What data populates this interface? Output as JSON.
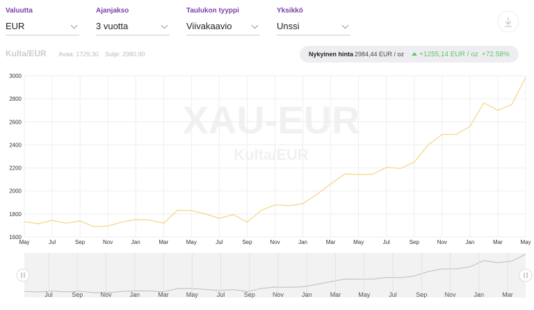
{
  "controls": [
    {
      "label": "Valuutta",
      "value": "EUR"
    },
    {
      "label": "Ajanjakso",
      "value": "3 vuotta"
    },
    {
      "label": "Taulukon tyyppi",
      "value": "Viivakaavio"
    },
    {
      "label": "Yksikkö",
      "value": "Unssi"
    }
  ],
  "info": {
    "name": "Kulta/EUR",
    "open": "Avaa: 1729,30",
    "close": "Sulje: 2980,90",
    "current_label": "Nykyinen hinta",
    "current_value": "2984,44 EUR / oz",
    "change": "+1255,14 EUR / oz",
    "change_pct": "+72.58%"
  },
  "watermark": {
    "title": "XAU-EUR",
    "subtitle": "Kulta/EUR"
  },
  "chart_data": {
    "type": "line",
    "categories": [
      "May",
      null,
      "Jul",
      null,
      "Sep",
      null,
      "Nov",
      null,
      "Jan",
      null,
      "Mar",
      null,
      "May",
      null,
      "Jul",
      null,
      "Sep",
      null,
      "Nov",
      null,
      "Jan",
      null,
      "Mar",
      null,
      "May",
      null,
      "Jul",
      null,
      "Sep",
      null,
      "Nov",
      null,
      "Jan",
      null,
      "Mar",
      null,
      "May"
    ],
    "series": [
      {
        "color": "#f5d78a",
        "values": [
          1733,
          1715,
          1745,
          1720,
          1739,
          1690,
          1695,
          1730,
          1752,
          1748,
          1720,
          1833,
          1830,
          1800,
          1762,
          1795,
          1730,
          1830,
          1880,
          1872,
          1890,
          1970,
          2060,
          2148,
          2143,
          2145,
          2205,
          2195,
          2250,
          2400,
          2490,
          2490,
          2560,
          2765,
          2700,
          2750,
          2985
        ]
      }
    ],
    "ylim": [
      1600,
      3000
    ],
    "yticks": [
      1600,
      1800,
      2000,
      2200,
      2400,
      2600,
      2800,
      3000
    ],
    "grid": true
  },
  "navigator": {
    "ticks": [
      "Jul",
      "Sep",
      "Nov",
      "Jan",
      "Mar",
      "May",
      "Jul",
      "Sep",
      "Nov",
      "Jan",
      "Mar",
      "May",
      "Jul",
      "Sep",
      "Nov",
      "Jan",
      "Mar"
    ]
  }
}
